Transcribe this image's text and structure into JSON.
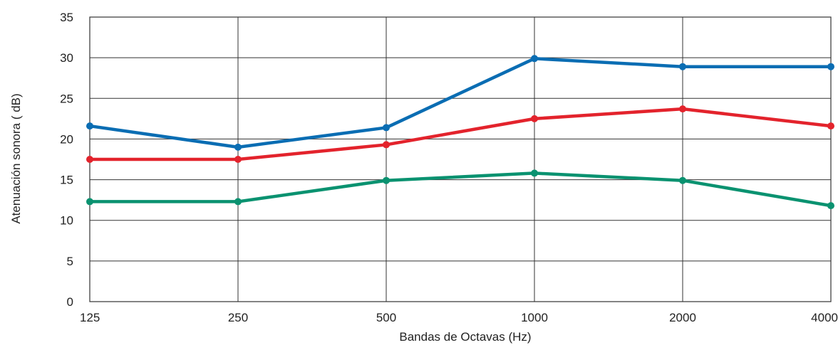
{
  "chart_data": {
    "type": "line",
    "xlabel": "Bandas de Octavas (Hz)",
    "ylabel": "Atenuación sonora ( dB)",
    "categories": [
      "125",
      "250",
      "500",
      "1000",
      "2000",
      "4000"
    ],
    "ylim": [
      0,
      35
    ],
    "yticks": [
      "0",
      "5",
      "10",
      "15",
      "20",
      "25",
      "30",
      "35"
    ],
    "grid": true,
    "legend": "none",
    "series": [
      {
        "color": "#0a6db3",
        "values": [
          21.6,
          19.0,
          21.4,
          29.9,
          28.9,
          28.9
        ]
      },
      {
        "color": "#e3232c",
        "values": [
          17.5,
          17.5,
          19.3,
          22.5,
          23.7,
          21.6
        ]
      },
      {
        "color": "#0a9270",
        "values": [
          12.3,
          12.3,
          14.9,
          15.8,
          14.9,
          11.8
        ]
      }
    ]
  }
}
